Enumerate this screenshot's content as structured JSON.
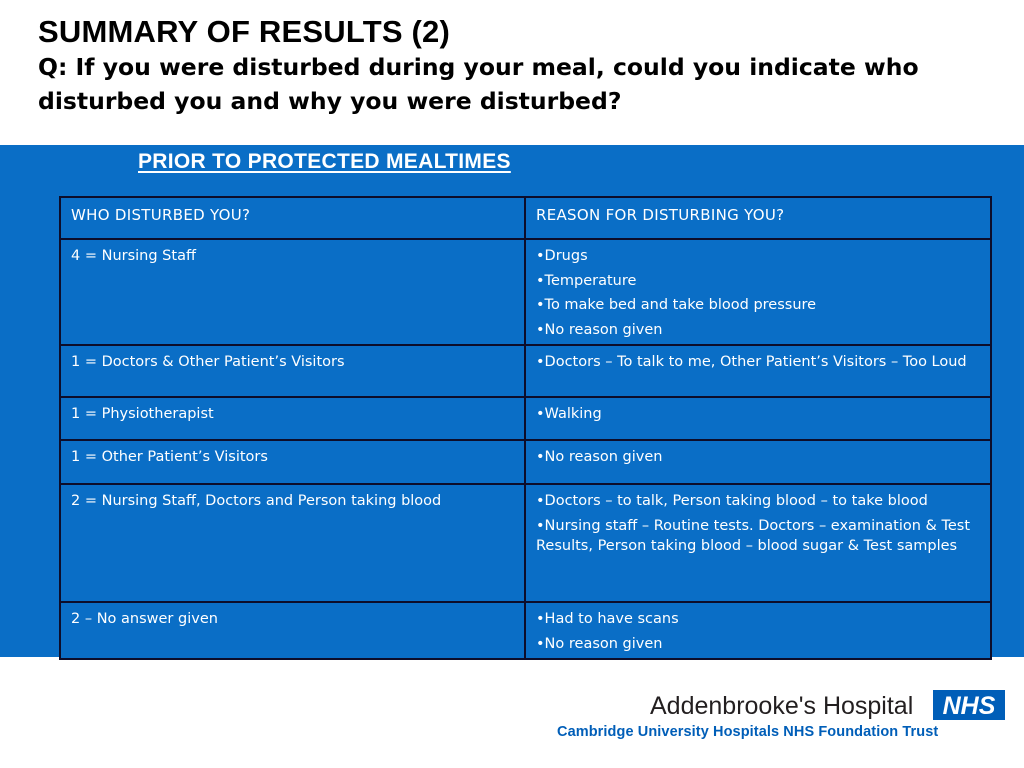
{
  "header": {
    "title": "SUMMARY OF RESULTS (2)",
    "question": "Q: If you were disturbed during your meal, could you indicate who disturbed you and why you were disturbed?"
  },
  "subheading": "PRIOR TO PROTECTED MEALTIMES",
  "table": {
    "headers": [
      "WHO DISTURBED YOU?",
      "REASON FOR DISTURBING YOU?"
    ],
    "rows": [
      {
        "who": "4 = Nursing Staff",
        "reasons": [
          "•Drugs",
          "•Temperature",
          "•To make bed and take blood pressure",
          "•No reason given"
        ]
      },
      {
        "who": "1 = Doctors & Other Patient’s Visitors",
        "reasons": [
          "•Doctors – To talk to me, Other Patient’s Visitors – Too Loud"
        ]
      },
      {
        "who": "1 = Physiotherapist",
        "reasons": [
          "•Walking"
        ]
      },
      {
        "who": "1 = Other Patient’s Visitors",
        "reasons": [
          "•No reason given"
        ]
      },
      {
        "who": "2 = Nursing Staff, Doctors and Person taking blood",
        "reasons": [
          "•Doctors – to talk, Person taking blood – to take blood",
          "•Nursing staff – Routine tests. Doctors – examination & Test Results, Person taking blood – blood sugar & Test samples"
        ]
      },
      {
        "who": "2 – No answer given",
        "reasons": [
          "•Had to have scans",
          "•No reason given"
        ]
      }
    ]
  },
  "footer": {
    "hospital_name": "Addenbrooke's Hospital",
    "trust_name": "Cambridge University Hospitals NHS Foundation Trust",
    "logo_text": "NHS",
    "logo_color": "#005eb8"
  },
  "colors": {
    "panel_blue": "#0a6ec6",
    "table_border": "#0d0d2a"
  }
}
